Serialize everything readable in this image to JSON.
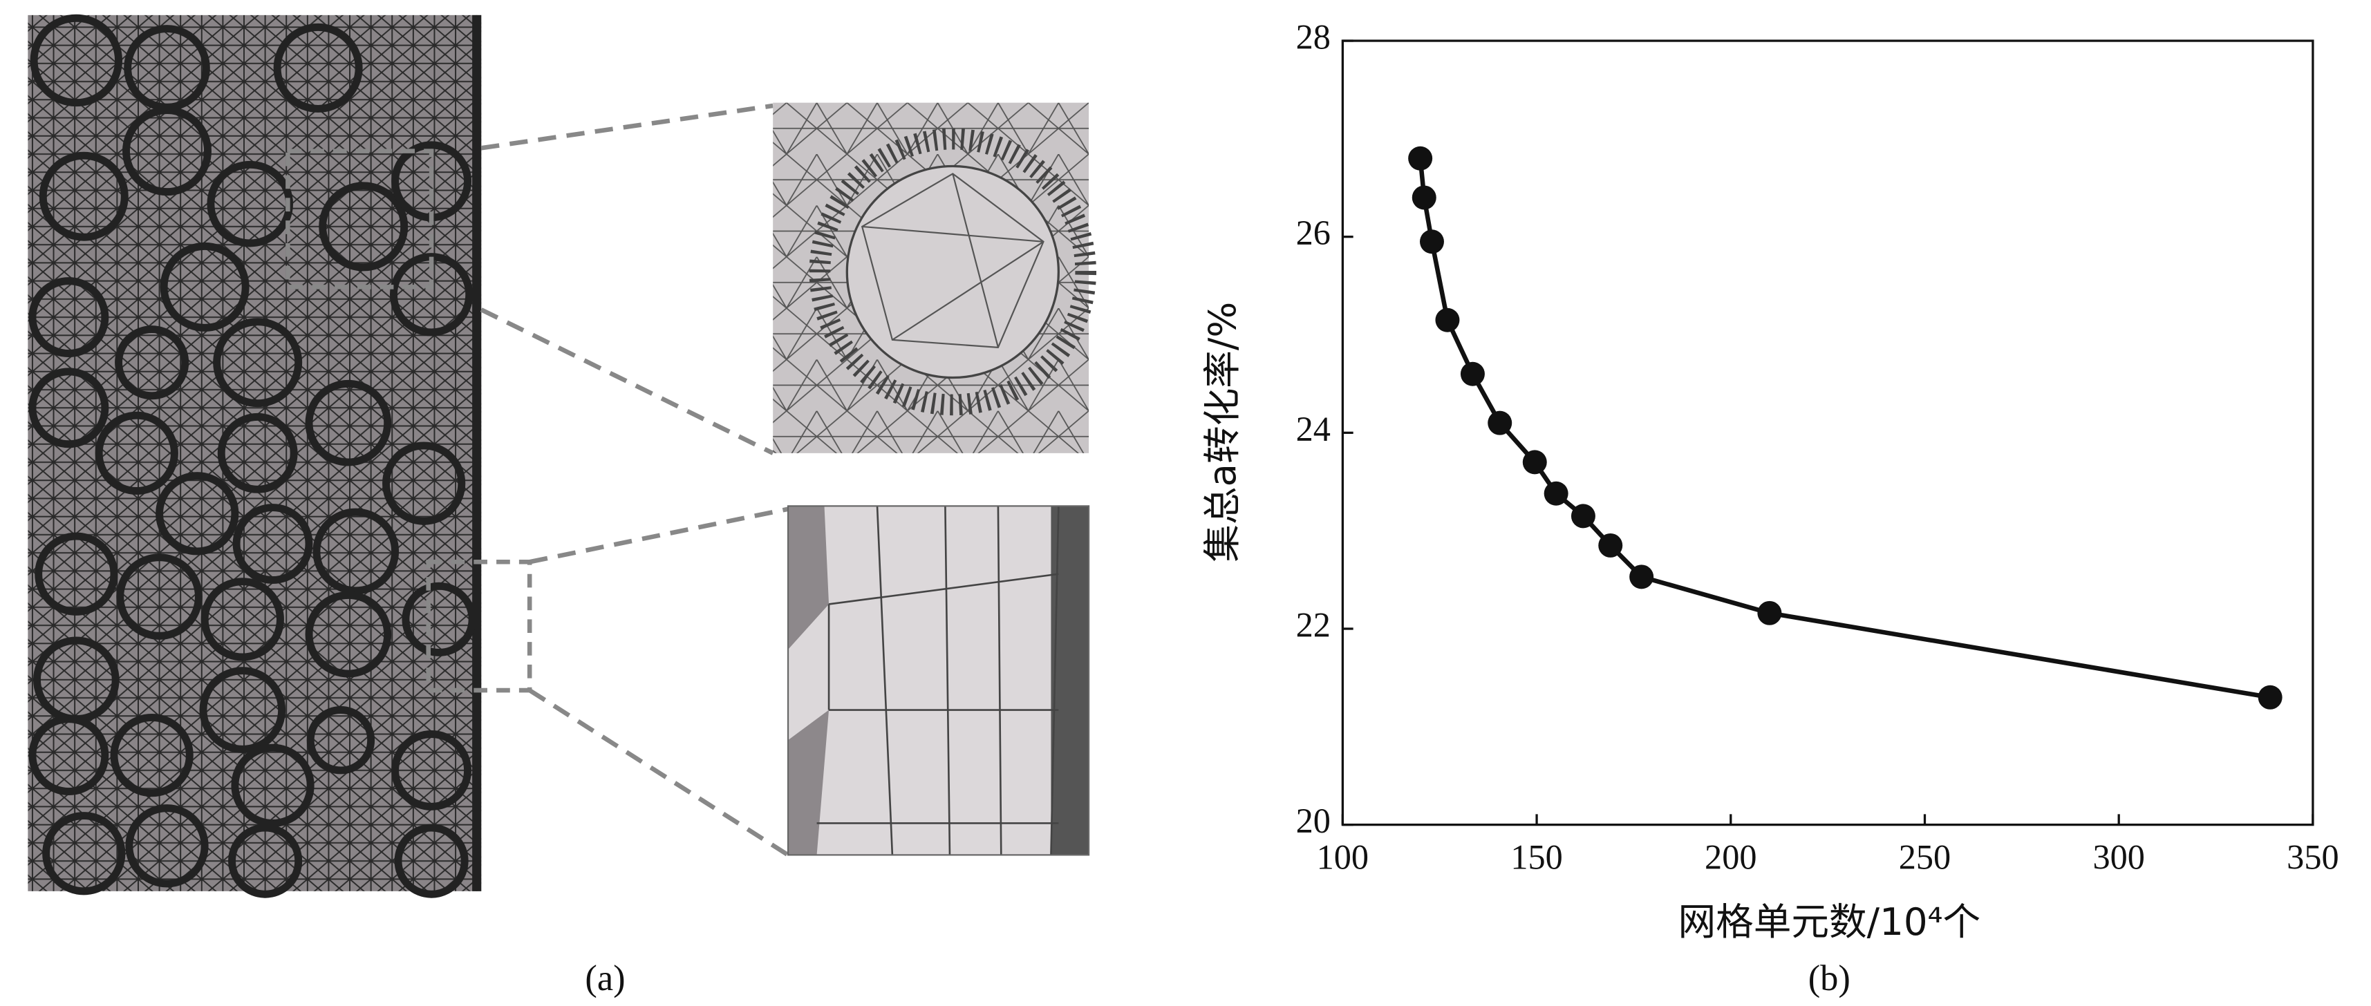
{
  "captions": {
    "a": "(a)",
    "b": "(b)"
  },
  "chart_data": {
    "type": "line",
    "xlabel": "网格单元数/10⁴个",
    "ylabel": "集总a转化率/%",
    "x": [
      120,
      121,
      123,
      127,
      133.5,
      140.5,
      149.5,
      155,
      162,
      169,
      177,
      210,
      339
    ],
    "series": [
      {
        "color": "#111111",
        "values": [
          26.8,
          26.4,
          25.95,
          25.15,
          24.6,
          24.1,
          23.7,
          23.38,
          23.15,
          22.85,
          22.53,
          22.16,
          21.3
        ]
      }
    ],
    "xlim": [
      100,
      350
    ],
    "xticks": [
      100,
      150,
      200,
      250,
      300,
      350
    ],
    "ylim": [
      20,
      28
    ],
    "yticks": [
      20,
      22,
      24,
      26,
      28
    ]
  }
}
